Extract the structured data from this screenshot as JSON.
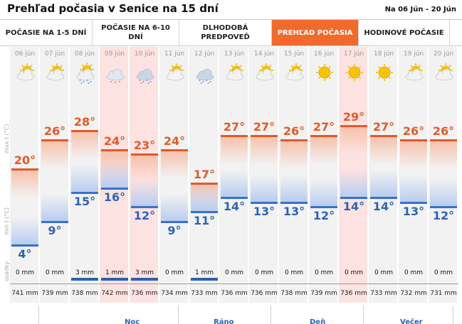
{
  "header": {
    "title": "Prehľad počasia v Senice na 15 dní",
    "date_range": "Na 06 Jún - 20 Jún"
  },
  "tabs": [
    {
      "label": "POČASIE NA 1-5 DNÍ",
      "active": false
    },
    {
      "label": "POČASIE NA 6-10 DNÍ",
      "active": false
    },
    {
      "label": "DLHODOBÁ PREDPOVEĎ",
      "active": false
    },
    {
      "label": "PREHĽAD POČASIA",
      "active": true
    },
    {
      "label": "HODINOVÉ POČASIE",
      "active": false
    }
  ],
  "axis_labels": {
    "max": "max t (°C)",
    "min": "min t (°C)",
    "precip": "osadky"
  },
  "days": [
    {
      "date": "06 jún",
      "icon": "partly-cloudy-sun-icon",
      "max": "20°",
      "min": "4°",
      "precip": "0 mm",
      "pressure": "741 mm",
      "highlight": false
    },
    {
      "date": "07 jún",
      "icon": "partly-cloudy-sun-icon",
      "max": "26°",
      "min": "9°",
      "precip": "0 mm",
      "pressure": "739 mm",
      "highlight": false
    },
    {
      "date": "08 jún",
      "icon": "sun-cloud-rain-icon",
      "max": "28°",
      "min": "15°",
      "precip": "3 mm",
      "pressure": "738 mm",
      "highlight": false
    },
    {
      "date": "09 jún",
      "icon": "cloud-drizzle-icon",
      "max": "24°",
      "min": "16°",
      "precip": "1 mm",
      "pressure": "742 mm",
      "highlight": true
    },
    {
      "date": "10 jún",
      "icon": "cloud-rain-icon",
      "max": "23°",
      "min": "12°",
      "precip": "3 mm",
      "pressure": "736 mm",
      "highlight": true
    },
    {
      "date": "11 jún",
      "icon": "partly-cloudy-sun-icon",
      "max": "24°",
      "min": "9°",
      "precip": "0 mm",
      "pressure": "734 mm",
      "highlight": false
    },
    {
      "date": "12 jún",
      "icon": "cloud-rain-icon",
      "max": "17°",
      "min": "11°",
      "precip": "1 mm",
      "pressure": "733 mm",
      "highlight": false
    },
    {
      "date": "13 jún",
      "icon": "partly-cloudy-sun-icon",
      "max": "27°",
      "min": "14°",
      "precip": "0 mm",
      "pressure": "736 mm",
      "highlight": false
    },
    {
      "date": "14 jún",
      "icon": "partly-cloudy-sun-icon",
      "max": "27°",
      "min": "13°",
      "precip": "0 mm",
      "pressure": "736 mm",
      "highlight": false
    },
    {
      "date": "15 jún",
      "icon": "partly-cloudy-sun-icon",
      "max": "26°",
      "min": "13°",
      "precip": "0 mm",
      "pressure": "738 mm",
      "highlight": false
    },
    {
      "date": "16 jún",
      "icon": "sun-icon",
      "max": "27°",
      "min": "12°",
      "precip": "0 mm",
      "pressure": "739 mm",
      "highlight": false
    },
    {
      "date": "17 jún",
      "icon": "sun-icon",
      "max": "29°",
      "min": "14°",
      "precip": "0 mm",
      "pressure": "736 mm",
      "highlight": true
    },
    {
      "date": "18 jún",
      "icon": "sun-icon",
      "max": "27°",
      "min": "14°",
      "precip": "0 mm",
      "pressure": "733 mm",
      "highlight": false
    },
    {
      "date": "19 jún",
      "icon": "partly-cloudy-sun-icon",
      "max": "26°",
      "min": "13°",
      "precip": "0 mm",
      "pressure": "732 mm",
      "highlight": false
    },
    {
      "date": "20 jún",
      "icon": "partly-cloudy-sun-icon",
      "max": "26°",
      "min": "12°",
      "precip": "0 mm",
      "pressure": "731 mm",
      "highlight": false
    }
  ],
  "day_parts": [
    "Noc",
    "Ráno",
    "Deň",
    "Večer"
  ],
  "colors": {
    "accent": "#f26a2b",
    "max_temp": "#e05a2a",
    "min_temp": "#2c63b4",
    "highlight_bg": "#fde2e2"
  }
}
